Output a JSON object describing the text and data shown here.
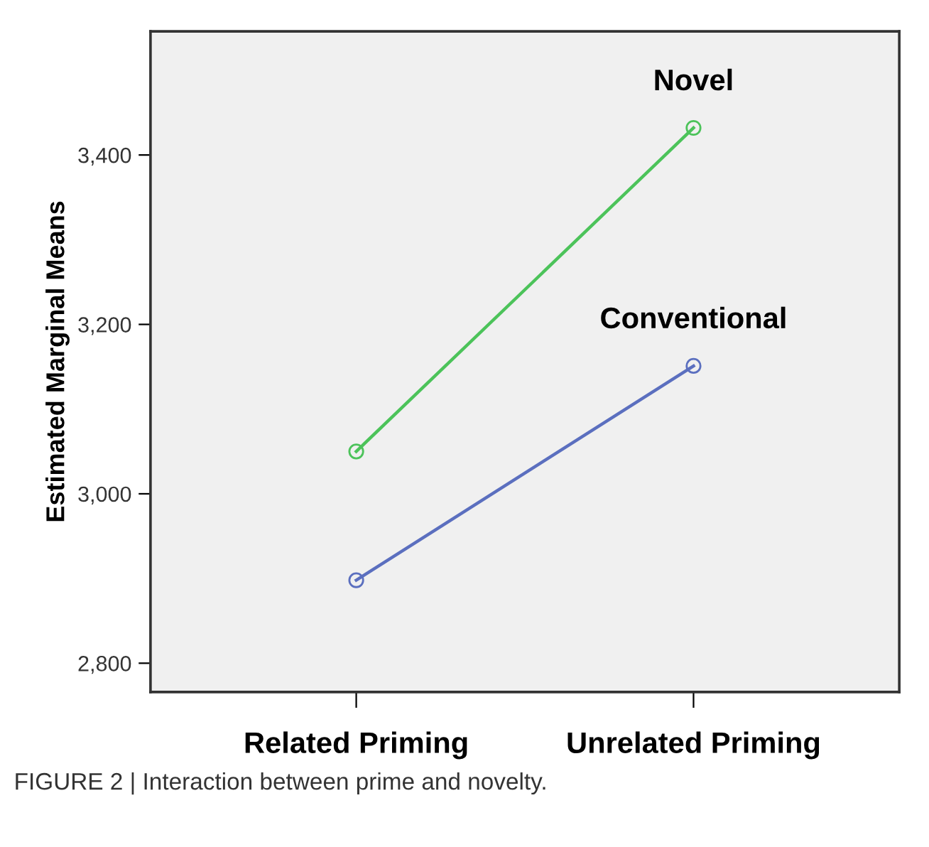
{
  "chart_data": {
    "type": "line",
    "ylabel": "Estimated Marginal Means",
    "categories": [
      "Related Priming",
      "Unrelated Priming"
    ],
    "series": [
      {
        "name": "Novel",
        "color": "#4cc35a",
        "values": [
          3050,
          3432
        ]
      },
      {
        "name": "Conventional",
        "color": "#5b6fbf",
        "values": [
          2898,
          3151
        ]
      }
    ],
    "ylim": [
      2766,
      3546
    ],
    "yticks": [
      {
        "value": 2800,
        "label": "2,800"
      },
      {
        "value": 3000,
        "label": "3,000"
      },
      {
        "value": 3200,
        "label": "3,200"
      },
      {
        "value": 3400,
        "label": "3,400"
      }
    ],
    "marker": "circle",
    "line_style": "solid",
    "grid": false,
    "legend": false,
    "annotations": [
      "FIGURE 2 | Interaction between prime and novelty."
    ]
  }
}
